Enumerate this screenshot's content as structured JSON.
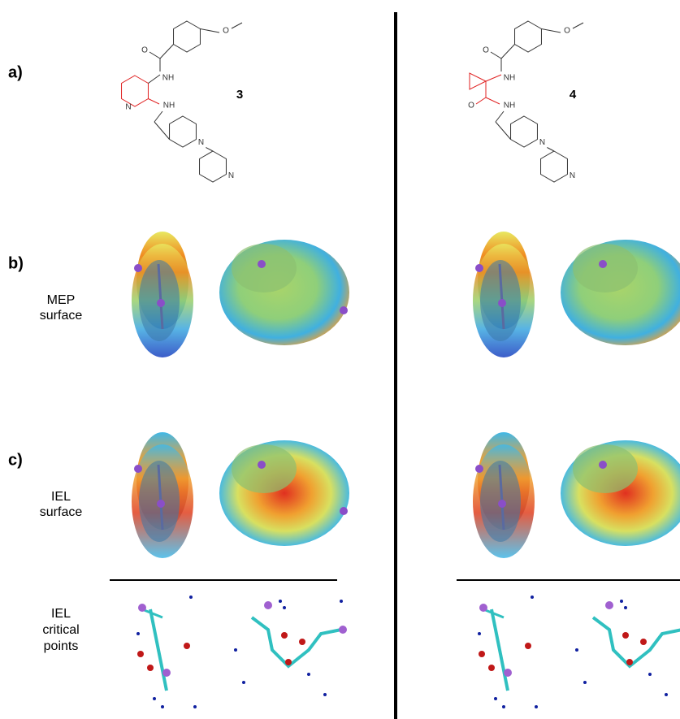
{
  "panel_labels": [
    "a)",
    "b)",
    "c)"
  ],
  "row_labels": {
    "mep": [
      "MEP",
      "surface"
    ],
    "iel": [
      "IEL",
      "surface"
    ],
    "critical": [
      "IEL",
      "critical",
      "points"
    ]
  },
  "compounds": [
    {
      "number": "3",
      "atoms": [
        "O",
        "O",
        "NH",
        "N",
        "NH",
        "N",
        "N"
      ]
    },
    {
      "number": "4",
      "atoms": [
        "O",
        "O",
        "NH",
        "O",
        "NH",
        "N",
        "N"
      ]
    }
  ]
}
